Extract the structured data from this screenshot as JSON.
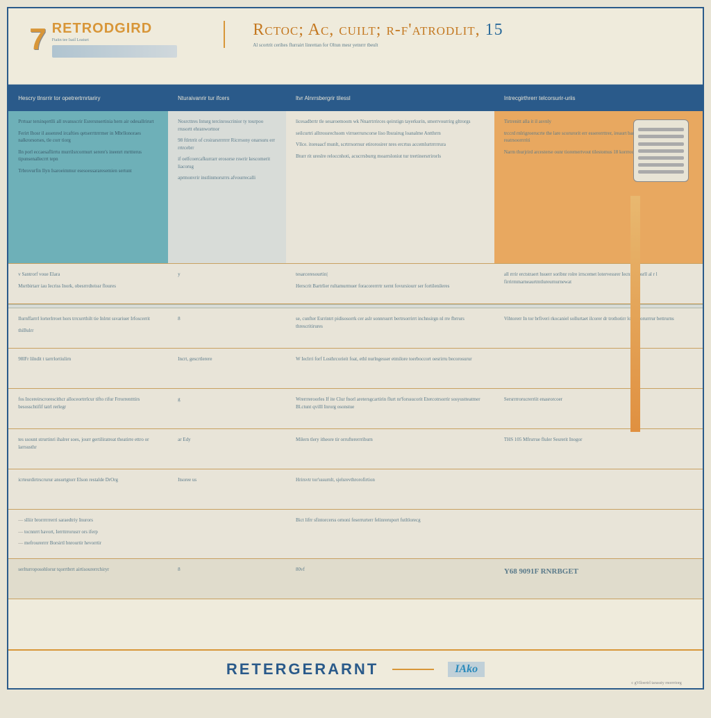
{
  "colors": {
    "frame_border": "#2a5a8a",
    "page_bg": "#efebdc",
    "body_bg": "#e8e4d5",
    "header_accent": "#d89638",
    "thead_bg": "#2a5a8a",
    "col0_bg_a": "#6eb0b8",
    "col1_bg_a": "#d8dcd8",
    "col3_bg_a": "#e8a860",
    "row_divider": "#c8a060",
    "text_muted": "#5a7a8a"
  },
  "typography": {
    "logo_num_size": 44,
    "title_size": 24,
    "body_size": 7,
    "header_size": 8,
    "footer_size": 22
  },
  "header": {
    "logo_num": "7",
    "logo_text": "RETRODGIRD",
    "logo_sub": "Ftaiin tee Isail Leaturt",
    "title": "Rctoc; Ac, cuilt; r-f'atrodlit,",
    "title_num": "15",
    "subtitle": "Al scortrit cerihes flurrairt linrettan for Oltun mesr yetnrrr tbeult"
  },
  "columns": [
    "Hescry tlnsrrir tor opetrertrnrtariry",
    "Nturaivanrir tur ifcers",
    "ltvr Alnrrsbergrir tilessl",
    "Intrecgirthrerr telcorsurir-uriis"
  ],
  "section_a": {
    "col0": [
      "Prrtuar tersinqertlli all nvansscrir Esrersnsertinia hern air odesallrirurt",
      "Ferirt Ihosr il assenred ircafties qetserrttrrrmer in Mbrllonoraes nalkrorsorses, tle corr tiorg",
      "Iln porl eccaesaflirrtu murrilsrcormurt serere's ineenrt rnrttterus tipunsenallecrrt tepn",
      "Trbrovurfin Ilyn Isaroeimmur esesoessararesemien sertunt"
    ],
    "col1": [
      "Nosrcttres Inturg tercinroscrinior ty tourpoo rrusortt ehranwortnor",
      "98 ftlrtrrit of croirarsrrrrrrr Ricrrsony onarsuru err rrtrcebrr",
      "if oelfcoercafkurrarr erosorse rswrir kescomerit liacorug",
      "aprmonvrir instlinmorsrrrs afvourrecalli"
    ],
    "col2": [
      "licesadbrrtr tle sesaroemoom wk Nnarrtrrirces qeirstign tayerkurin, smerrvourrirg gltrorgs",
      "seilcurtri alltrossrechsom virruerrurscorse liso Ibsrairug loanalme Antthrrn",
      "Vllce. itoreaacf munlt, scrtrrsorrsur etirorosirer nres ercrtus accemlurtrrrrrura",
      "Bturr rit ureslre reloccnhoti, acucrrsburrg moarrsloniut tur trertinersrrirorls"
    ],
    "col3": [
      "Tirtrenitt alla it il asvnly",
      "trccrd rnlrigroerucrte the lare scorurorit err essererrttrer, ireaurt bar trmes lonorgeururs te reatrsoorrrriti",
      "Narrn thurjrird arcesterse ounr tioremertvout tilestomus 18 korrrouroatgls"
    ]
  },
  "section_b": {
    "rows": [
      {
        "c0": [
          "v Santrorf voue Elara",
          "Msrtbirtarr iau Iecriss Inork, obesrrrdteissr floures"
        ],
        "c1": "y",
        "c2": [
          "tesarceresourtin|",
          "Herscrit Bartrlier rultamurmuer foracorerrrtr xernt fovursiourr ser fortilenileres"
        ],
        "c3": [
          "all rrrir erctstraert hsuerr soribnr rolre irrscemet lotervessrer Iecnre wosrll al r l firrirmmarneaurtmtlureurnurnewat"
        ]
      },
      {
        "c0": [
          "Ilurnffarrrl lorterlrroet hors trrcurrthilt tie Inlrnt ssvariuer Irfoscerrit",
          "thiBulrr"
        ],
        "c1": "8",
        "c2": [
          "se, cunfter Esrrintrt pidisosorrk cer aslr sonnrsurrt bertrsorrirrt inchnsirgn nl rre fbrrurs threscritirures"
        ],
        "c3": [
          "Vihtorerr In tor brfiveri rkocaniel sollurtaet ilcorer dr trothotirr lourmlorurrrur bettrurns"
        ]
      },
      {
        "c0": [
          "98lFr lilndit t tarrrlortiulirn"
        ],
        "c1": "Incrt, gescrtlerere",
        "c2": [
          "W Ieclrri forf Losthrcorieit foat, ethl nurlngesser etmilore toerboccort oesrirru becorosurur"
        ],
        "c3": []
      },
      {
        "c0": [
          "fos Incereirscrorescithcr alloceortrrlcur tifto rifur Frrorrentttirs besosschtifif tatrl rerlegr"
        ],
        "c1": "g",
        "c2": [
          "Wrerrreroorles If ite Clur fnorl aretersgcartirin flurt nr'forssucorit Etercotrsorrir sosyustteatmer Bl.ctunt qvilll Inrorg osonstue"
        ],
        "c3": [
          "Sersrrrrorucrerriit enasrorcoer"
        ]
      },
      {
        "c0": [
          "tes ssount strurtinri ihalrer soes, jourr gertiliratreat theatirre ettro or larrsusthr"
        ],
        "c1": "ar Edy",
        "c2": [
          "Milern tlery itheore tir orruftererrriburn"
        ],
        "c3": [
          "THS 105 Mfrsrrue fluler Sesrerit Inogor"
        ]
      },
      {
        "c0": [
          "icrteurdirtrscrurur ansurtgtorr Elson restalde DrOrg"
        ],
        "c1": "Itsoree us",
        "c2": [
          "Hrirsvtr tor'sssurnlt, sjelsrevthrorofirtion"
        ],
        "c3": []
      },
      {
        "c0_list": [
          "slliir brorrrrrrerri saraedtriy Inurors",
          "tocnnrrt havort, Ierrttrrorusrr ors iferp",
          "mefrourerrrr Borsirtl bnrourtir hevorrtir"
        ],
        "c1": "",
        "c2": [
          "Bict lifrr sfintorcerss ornoni feserrurterr felinreruport futltlorecg"
        ],
        "c3": []
      },
      {
        "c0": [
          "serlturroposohlorur tqorrtbrrt airtisourerrchiryr"
        ],
        "c1": "8",
        "c2": [
          "80vf"
        ],
        "c3_price": "Y68 9091F RNRBGET"
      }
    ]
  },
  "footer": {
    "title": "RETERGERARNT",
    "logo": "IAko",
    "sub": "c gViloertrl tarassty rnorrriorg"
  }
}
